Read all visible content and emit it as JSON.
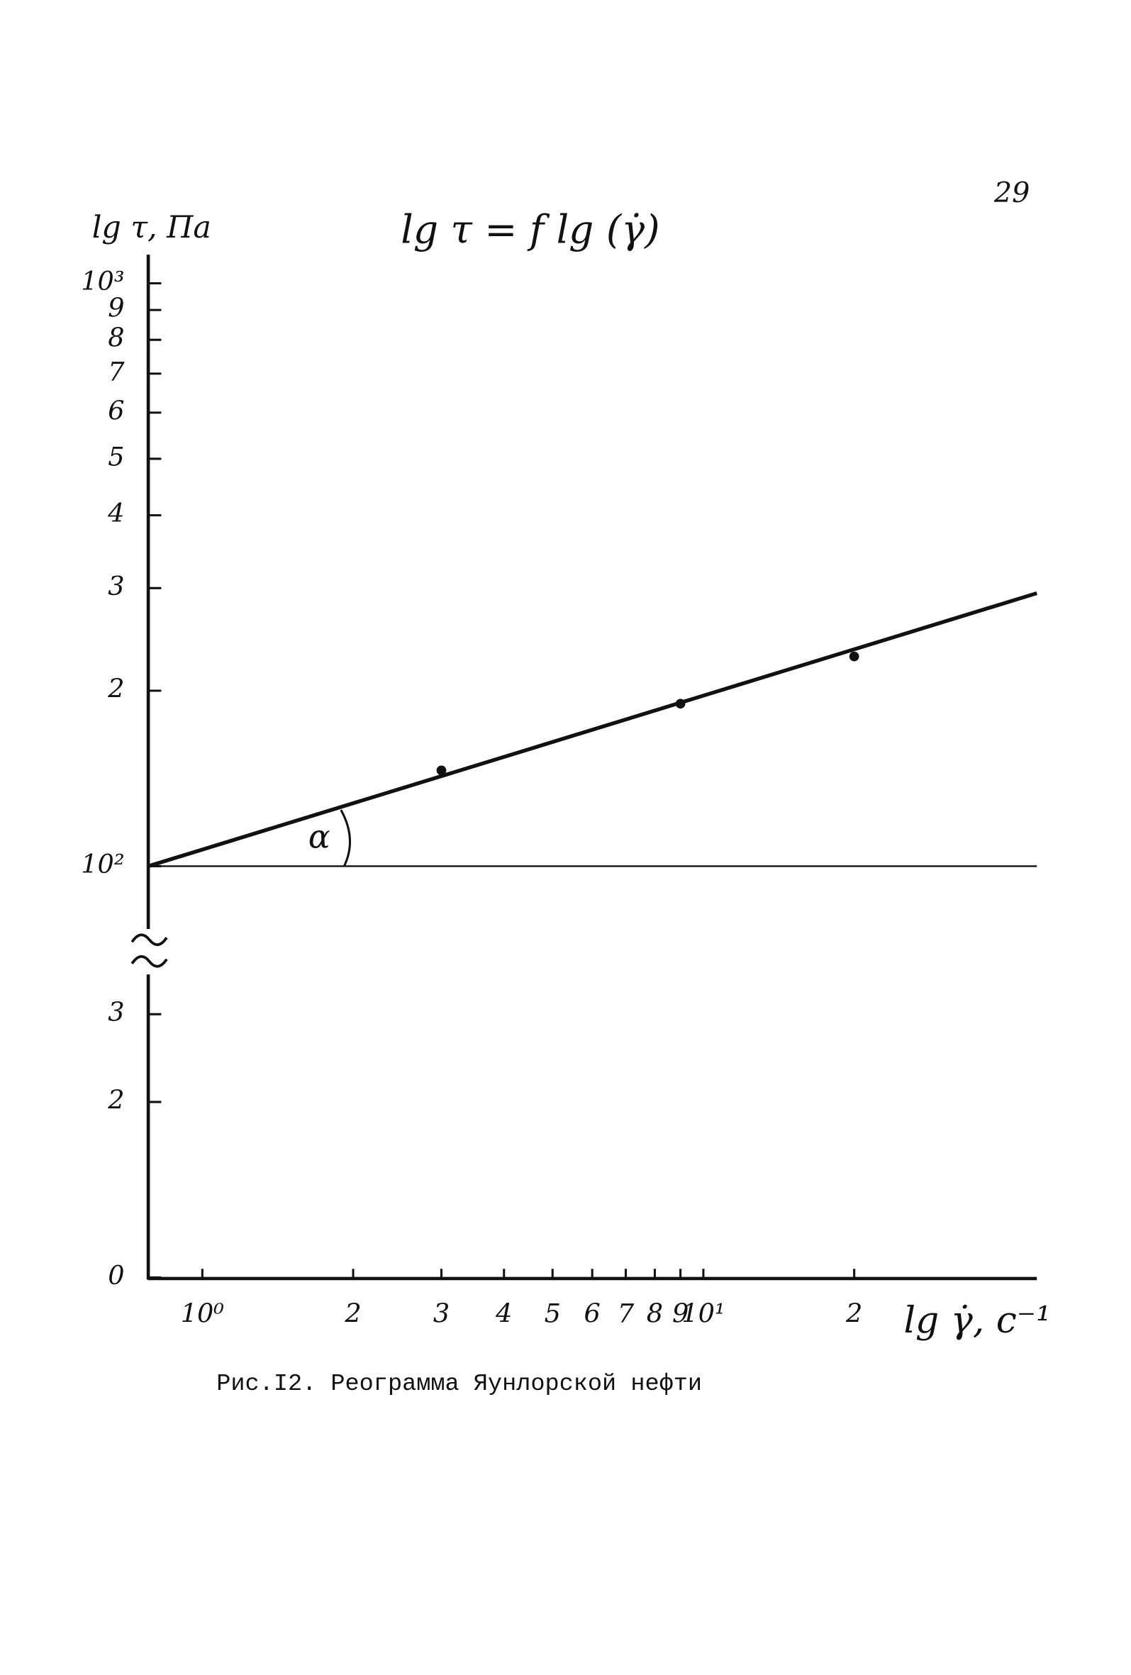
{
  "page_number": "29",
  "chart_data": {
    "type": "scatter",
    "title": "lg τ = f lg (γ̇)",
    "y_label": "lg τ, Па",
    "x_label": "lg γ̇, с⁻¹",
    "caption": "Рис.I2. Реограмма Яунлорской нефти",
    "angle_label": "α",
    "log_x": true,
    "log_y": true,
    "xlim": [
      0.78,
      46.3
    ],
    "ylim": [
      85,
      1120
    ],
    "xticks": [
      {
        "value": 1,
        "label": "10⁰"
      },
      2,
      3,
      4,
      5,
      6,
      7,
      8,
      9,
      {
        "value": 10,
        "label": "10¹"
      },
      {
        "value": 20,
        "label": "2"
      }
    ],
    "yticks": [
      {
        "value": 100,
        "label": "10²"
      },
      {
        "value": 200,
        "label": "2"
      },
      {
        "value": 300,
        "label": "3"
      },
      {
        "value": 400,
        "label": "4"
      },
      {
        "value": 500,
        "label": "5"
      },
      {
        "value": 600,
        "label": "6"
      },
      {
        "value": 700,
        "label": "7"
      },
      {
        "value": 800,
        "label": "8"
      },
      {
        "value": 900,
        "label": "9"
      },
      {
        "value": 1000,
        "label": "10³"
      }
    ],
    "y_break": true,
    "lower_ylim": [
      0,
      3.7
    ],
    "lower_yticks": [
      0,
      2,
      3
    ],
    "reference_y": 100,
    "color": "#111111",
    "series": [
      {
        "x": [
          3,
          9,
          20
        ],
        "values": [
          146,
          190,
          229
        ]
      }
    ],
    "fit": {
      "x": [
        0.78,
        46.3
      ],
      "values": [
        100,
        294
      ]
    }
  }
}
